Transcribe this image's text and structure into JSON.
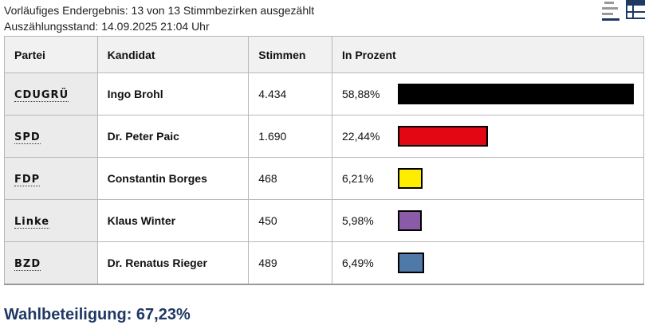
{
  "status": {
    "line1": "Vorläufiges Endergebnis: 13 von 13 Stimmbezirken ausgezählt",
    "line2": "Auszählungsstand: 14.09.2025 21:04 Uhr"
  },
  "toolbar": {
    "chart_icon": "bar-chart-icon",
    "table_icon": "table-icon",
    "accent": "#1f3864"
  },
  "table": {
    "headers": [
      "Partei",
      "Kandidat",
      "Stimmen",
      "In Prozent"
    ],
    "rows": [
      {
        "party": "CDUGRÜ",
        "candidate": "Ingo Brohl",
        "votes": "4.434",
        "percent": "58,88%",
        "share": 0.5888,
        "color": "#000000"
      },
      {
        "party": "SPD",
        "candidate": "Dr. Peter Paic",
        "votes": "1.690",
        "percent": "22,44%",
        "share": 0.2244,
        "color": "#e30613"
      },
      {
        "party": "FDP",
        "candidate": "Constantin Borges",
        "votes": "468",
        "percent": "6,21%",
        "share": 0.0621,
        "color": "#ffed00"
      },
      {
        "party": "Linke",
        "candidate": "Klaus Winter",
        "votes": "450",
        "percent": "5,98%",
        "share": 0.0598,
        "color": "#8a5ca8"
      },
      {
        "party": "BZD",
        "candidate": "Dr. Renatus Rieger",
        "votes": "489",
        "percent": "6,49%",
        "share": 0.0649,
        "color": "#4f79a6"
      }
    ]
  },
  "turnout": "Wahlbeteiligung: 67,23%"
}
